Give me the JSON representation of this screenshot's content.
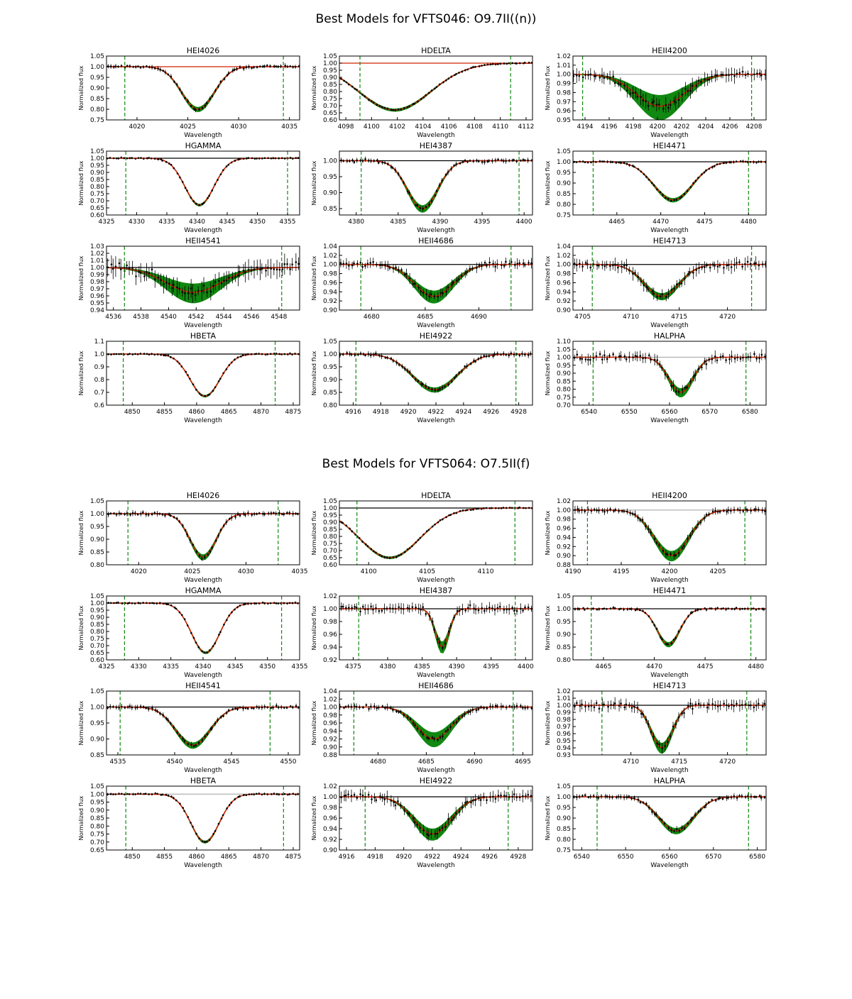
{
  "figures": [
    {
      "title": "Best Models for VFTS046: O9.7II((n))",
      "panels": [
        {
          "name": "HEI4026",
          "xmin": 4017,
          "xmax": 4036,
          "ymin": 0.75,
          "ymax": 1.05,
          "xticks": [
            4020,
            4025,
            4030,
            4035
          ],
          "yticks": [
            "0.75",
            "0.80",
            "0.85",
            "0.90",
            "0.95",
            "1.00",
            "1.05"
          ],
          "refline": "red",
          "center": 4026.0,
          "depth": 0.2,
          "width": 1.6,
          "spread": 0.012,
          "bands": [
            4018.8,
            4034.4
          ],
          "noise": 0.008,
          "xlabel": "Wavelength",
          "ylabel": "Normalized flux"
        },
        {
          "name": "HDELTA",
          "xmin": 4097.5,
          "xmax": 4112.5,
          "ymin": 0.6,
          "ymax": 1.05,
          "xticks": [
            4098,
            4100,
            4102,
            4104,
            4106,
            4108,
            4110,
            4112
          ],
          "yticks": [
            "0.60",
            "0.65",
            "0.70",
            "0.75",
            "0.80",
            "0.85",
            "0.90",
            "0.95",
            "1.00",
            "1.05"
          ],
          "refline": "red",
          "center": 4101.8,
          "depth": 0.33,
          "width": 2.8,
          "spread": 0.01,
          "bands": [
            4099.1,
            4110.8
          ],
          "noise": 0.006,
          "xlabel": "Wavelength",
          "ylabel": "Normalized flux"
        },
        {
          "name": "HEII4200",
          "xmin": 4193,
          "xmax": 4209,
          "ymin": 0.95,
          "ymax": 1.02,
          "xticks": [
            4194,
            4196,
            4198,
            4200,
            4202,
            4204,
            4206,
            4208
          ],
          "yticks": [
            "0.95",
            "0.96",
            "0.97",
            "0.98",
            "0.99",
            "1.00",
            "1.01",
            "1.02"
          ],
          "refline": "gray",
          "center": 4200.2,
          "depth": 0.035,
          "width": 2.0,
          "spread": 0.015,
          "bands": [
            4193.8,
            4207.8
          ],
          "noise": 0.006,
          "xlabel": "Wavelength",
          "ylabel": "Normalized flux"
        },
        {
          "name": "HGAMMA",
          "xmin": 4325,
          "xmax": 4357,
          "ymin": 0.6,
          "ymax": 1.05,
          "xticks": [
            4325,
            4330,
            4335,
            4340,
            4345,
            4350,
            4355
          ],
          "yticks": [
            "0.60",
            "0.65",
            "0.70",
            "0.75",
            "0.80",
            "0.85",
            "0.90",
            "0.95",
            "1.00",
            "1.05"
          ],
          "refline": "black",
          "center": 4340.4,
          "depth": 0.33,
          "width": 2.4,
          "spread": 0.008,
          "bands": [
            4328.2,
            4355.0
          ],
          "noise": 0.006,
          "xlabel": "Wavelength",
          "ylabel": "Normalized flux"
        },
        {
          "name": "HEI4387",
          "xmin": 4378,
          "xmax": 4401,
          "ymin": 0.83,
          "ymax": 1.03,
          "xticks": [
            4380,
            4385,
            4390,
            4395,
            4400
          ],
          "yticks": [
            "0.85",
            "0.90",
            "0.95",
            "1.00"
          ],
          "refline": "black",
          "center": 4387.9,
          "depth": 0.15,
          "width": 1.8,
          "spread": 0.012,
          "bands": [
            4380.6,
            4399.4
          ],
          "noise": 0.006,
          "xlabel": "Wavelength",
          "ylabel": "Normalized flux"
        },
        {
          "name": "HEI4471",
          "xmin": 4460,
          "xmax": 4482,
          "ymin": 0.75,
          "ymax": 1.05,
          "xticks": [
            4465,
            4470,
            4475,
            4480
          ],
          "yticks": [
            "0.75",
            "0.80",
            "0.85",
            "0.90",
            "0.95",
            "1.00",
            "1.05"
          ],
          "refline": "black",
          "center": 4471.4,
          "depth": 0.18,
          "width": 2.2,
          "spread": 0.01,
          "bands": [
            4462.3,
            4480.0
          ],
          "noise": 0.005,
          "xlabel": "Wavelength",
          "ylabel": "Normalized flux"
        },
        {
          "name": "HEII4541",
          "xmin": 4535.5,
          "xmax": 4549.5,
          "ymin": 0.94,
          "ymax": 1.03,
          "xticks": [
            4536,
            4538,
            4540,
            4542,
            4544,
            4546,
            4548
          ],
          "yticks": [
            "0.94",
            "0.95",
            "0.96",
            "0.97",
            "0.98",
            "0.99",
            "1.00",
            "1.01",
            "1.02",
            "1.03"
          ],
          "refline": "black",
          "center": 4541.8,
          "depth": 0.035,
          "width": 2.0,
          "spread": 0.015,
          "bands": [
            4536.8,
            4548.2
          ],
          "noise": 0.01,
          "xlabel": "Wavelength",
          "ylabel": "Normalized flux"
        },
        {
          "name": "HEII4686",
          "xmin": 4677,
          "xmax": 4695,
          "ymin": 0.9,
          "ymax": 1.04,
          "xticks": [
            4680,
            4685,
            4690
          ],
          "yticks": [
            "0.90",
            "0.92",
            "0.94",
            "0.96",
            "0.98",
            "1.00",
            "1.02",
            "1.04"
          ],
          "refline": "black",
          "center": 4685.8,
          "depth": 0.07,
          "width": 1.8,
          "spread": 0.015,
          "bands": [
            4679.0,
            4693.0
          ],
          "noise": 0.008,
          "xlabel": "Wavelength",
          "ylabel": "Normalized flux"
        },
        {
          "name": "HEI4713",
          "xmin": 4704,
          "xmax": 4724,
          "ymin": 0.9,
          "ymax": 1.04,
          "xticks": [
            4705,
            4710,
            4715,
            4720
          ],
          "yticks": [
            "0.90",
            "0.92",
            "0.94",
            "0.96",
            "0.98",
            "1.00",
            "1.02",
            "1.04"
          ],
          "refline": "black",
          "center": 4713.2,
          "depth": 0.07,
          "width": 1.8,
          "spread": 0.008,
          "bands": [
            4706.0,
            4722.5
          ],
          "noise": 0.01,
          "xlabel": "Wavelength",
          "ylabel": "Normalized flux"
        },
        {
          "name": "HBETA",
          "xmin": 4846,
          "xmax": 4876,
          "ymin": 0.6,
          "ymax": 1.1,
          "xticks": [
            4850,
            4855,
            4860,
            4865,
            4870,
            4875
          ],
          "yticks": [
            "0.6",
            "0.7",
            "0.8",
            "0.9",
            "1.0",
            "1.1"
          ],
          "refline": "black",
          "center": 4861.3,
          "depth": 0.33,
          "width": 2.3,
          "spread": 0.008,
          "bands": [
            4848.6,
            4872.2
          ],
          "noise": 0.006,
          "xlabel": "Wavelength",
          "ylabel": "Normalized flux"
        },
        {
          "name": "HEI4922",
          "xmin": 4915,
          "xmax": 4929,
          "ymin": 0.8,
          "ymax": 1.05,
          "xticks": [
            4916,
            4918,
            4920,
            4922,
            4924,
            4926,
            4928
          ],
          "yticks": [
            "0.80",
            "0.85",
            "0.90",
            "0.95",
            "1.00",
            "1.05"
          ],
          "refline": "black",
          "center": 4921.9,
          "depth": 0.14,
          "width": 1.6,
          "spread": 0.01,
          "bands": [
            4916.2,
            4927.8
          ],
          "noise": 0.008,
          "xlabel": "Wavelength",
          "ylabel": "Normalized flux"
        },
        {
          "name": "HALPHA",
          "xmin": 6536,
          "xmax": 6584,
          "ymin": 0.7,
          "ymax": 1.1,
          "xticks": [
            6540,
            6550,
            6560,
            6570,
            6580
          ],
          "yticks": [
            "0.70",
            "0.75",
            "0.80",
            "0.85",
            "0.90",
            "0.95",
            "1.00",
            "1.05",
            "1.10"
          ],
          "refline": "gray",
          "center": 6562.8,
          "depth": 0.22,
          "width": 3.0,
          "spread": 0.03,
          "bands": [
            6541.0,
            6579.0
          ],
          "noise": 0.025,
          "xlabel": "Wavelength",
          "ylabel": "Normalized flux"
        }
      ]
    },
    {
      "title": "Best Models for VFTS064: O7.5II(f)",
      "panels": [
        {
          "name": "HEI4026",
          "xmin": 4017,
          "xmax": 4035,
          "ymin": 0.8,
          "ymax": 1.05,
          "xticks": [
            4020,
            4025,
            4030,
            4035
          ],
          "yticks": [
            "0.80",
            "0.85",
            "0.90",
            "0.95",
            "1.00",
            "1.05"
          ],
          "refline": "black",
          "center": 4026.0,
          "depth": 0.17,
          "width": 1.2,
          "spread": 0.012,
          "bands": [
            4019.0,
            4033.0
          ],
          "noise": 0.008,
          "xlabel": "Wavelength",
          "ylabel": "Normalized flux"
        },
        {
          "name": "HDELTA",
          "xmin": 4097.5,
          "xmax": 4114,
          "ymin": 0.6,
          "ymax": 1.05,
          "xticks": [
            4100,
            4105,
            4110
          ],
          "yticks": [
            "0.60",
            "0.65",
            "0.70",
            "0.75",
            "0.80",
            "0.85",
            "0.90",
            "0.95",
            "1.00",
            "1.05"
          ],
          "refline": "black",
          "center": 4101.8,
          "depth": 0.35,
          "width": 2.6,
          "spread": 0.008,
          "bands": [
            4099.0,
            4112.5
          ],
          "noise": 0.006,
          "xlabel": "Wavelength",
          "ylabel": "Normalized flux"
        },
        {
          "name": "HEII4200",
          "xmin": 4190,
          "xmax": 4210,
          "ymin": 0.88,
          "ymax": 1.02,
          "xticks": [
            4190,
            4195,
            4200,
            4205
          ],
          "yticks": [
            "0.88",
            "0.90",
            "0.92",
            "0.94",
            "0.96",
            "0.98",
            "1.00",
            "1.02"
          ],
          "refline": "gray",
          "center": 4200.2,
          "depth": 0.1,
          "width": 1.8,
          "spread": 0.012,
          "bands": [
            4191.5,
            4207.8
          ],
          "noise": 0.006,
          "xlabel": "Wavelength",
          "ylabel": "Normalized flux"
        },
        {
          "name": "HGAMMA",
          "xmin": 4325,
          "xmax": 4355,
          "ymin": 0.6,
          "ymax": 1.05,
          "xticks": [
            4325,
            4330,
            4335,
            4340,
            4345,
            4350,
            4355
          ],
          "yticks": [
            "0.60",
            "0.65",
            "0.70",
            "0.75",
            "0.80",
            "0.85",
            "0.90",
            "0.95",
            "1.00",
            "1.05"
          ],
          "refline": "black",
          "center": 4340.4,
          "depth": 0.35,
          "width": 2.2,
          "spread": 0.008,
          "bands": [
            4327.8,
            4352.2
          ],
          "noise": 0.006,
          "xlabel": "Wavelength",
          "ylabel": "Normalized flux"
        },
        {
          "name": "HEI4387",
          "xmin": 4373,
          "xmax": 4401,
          "ymin": 0.92,
          "ymax": 1.02,
          "xticks": [
            4375,
            4380,
            4385,
            4390,
            4395,
            4400
          ],
          "yticks": [
            "0.92",
            "0.94",
            "0.96",
            "0.98",
            "1.00",
            "1.02"
          ],
          "refline": "black",
          "center": 4387.9,
          "depth": 0.06,
          "width": 1.0,
          "spread": 0.01,
          "bands": [
            4375.8,
            4398.5
          ],
          "noise": 0.006,
          "xlabel": "Wavelength",
          "ylabel": "Normalized flux"
        },
        {
          "name": "HEI4471",
          "xmin": 4462,
          "xmax": 4481,
          "ymin": 0.8,
          "ymax": 1.05,
          "xticks": [
            4465,
            4470,
            4475,
            4480
          ],
          "yticks": [
            "0.80",
            "0.85",
            "0.90",
            "0.95",
            "1.00",
            "1.05"
          ],
          "refline": "black",
          "center": 4471.4,
          "depth": 0.14,
          "width": 1.1,
          "spread": 0.01,
          "bands": [
            4463.8,
            4479.5
          ],
          "noise": 0.005,
          "xlabel": "Wavelength",
          "ylabel": "Normalized flux"
        },
        {
          "name": "HEII4541",
          "xmin": 4534,
          "xmax": 4551,
          "ymin": 0.85,
          "ymax": 1.05,
          "xticks": [
            4535,
            4540,
            4545,
            4550
          ],
          "yticks": [
            "0.85",
            "0.90",
            "0.95",
            "1.00",
            "1.05"
          ],
          "refline": "black",
          "center": 4541.6,
          "depth": 0.12,
          "width": 1.5,
          "spread": 0.01,
          "bands": [
            4535.2,
            4548.4
          ],
          "noise": 0.006,
          "xlabel": "Wavelength",
          "ylabel": "Normalized flux"
        },
        {
          "name": "HEII4686",
          "xmin": 4676,
          "xmax": 4696,
          "ymin": 0.88,
          "ymax": 1.04,
          "xticks": [
            4680,
            4685,
            4690,
            4695
          ],
          "yticks": [
            "0.88",
            "0.90",
            "0.92",
            "0.94",
            "0.96",
            "0.98",
            "1.00",
            "1.02",
            "1.04"
          ],
          "refline": "black",
          "center": 4685.8,
          "depth": 0.08,
          "width": 1.8,
          "spread": 0.02,
          "bands": [
            4677.5,
            4694.0
          ],
          "noise": 0.006,
          "xlabel": "Wavelength",
          "ylabel": "Normalized flux"
        },
        {
          "name": "HEI4713",
          "xmin": 4704,
          "xmax": 4724,
          "ymin": 0.93,
          "ymax": 1.02,
          "xticks": [
            4710,
            4715,
            4720
          ],
          "yticks": [
            "0.93",
            "0.94",
            "0.95",
            "0.96",
            "0.97",
            "0.98",
            "0.99",
            "1.00",
            "1.01",
            "1.02"
          ],
          "refline": "black",
          "center": 4713.2,
          "depth": 0.06,
          "width": 1.1,
          "spread": 0.008,
          "bands": [
            4707.0,
            4722.0
          ],
          "noise": 0.006,
          "xlabel": "Wavelength",
          "ylabel": "Normalized flux"
        },
        {
          "name": "HBETA",
          "xmin": 4846,
          "xmax": 4876,
          "ymin": 0.65,
          "ymax": 1.05,
          "xticks": [
            4850,
            4855,
            4860,
            4865,
            4870,
            4875
          ],
          "yticks": [
            "0.65",
            "0.70",
            "0.75",
            "0.80",
            "0.85",
            "0.90",
            "0.95",
            "1.00",
            "1.05"
          ],
          "refline": "gray",
          "center": 4861.3,
          "depth": 0.3,
          "width": 2.2,
          "spread": 0.008,
          "bands": [
            4849.0,
            4873.5
          ],
          "noise": 0.006,
          "xlabel": "Wavelength",
          "ylabel": "Normalized flux"
        },
        {
          "name": "HEI4922",
          "xmin": 4915.5,
          "xmax": 4929,
          "ymin": 0.9,
          "ymax": 1.02,
          "xticks": [
            4916,
            4918,
            4920,
            4922,
            4924,
            4926,
            4928
          ],
          "yticks": [
            "0.90",
            "0.92",
            "0.94",
            "0.96",
            "0.98",
            "1.00",
            "1.02"
          ],
          "refline": "black",
          "center": 4922.0,
          "depth": 0.07,
          "width": 1.3,
          "spread": 0.012,
          "bands": [
            4917.3,
            4927.3
          ],
          "noise": 0.008,
          "xlabel": "Wavelength",
          "ylabel": "Normalized flux"
        },
        {
          "name": "HALPHA",
          "xmin": 6538,
          "xmax": 6582,
          "ymin": 0.75,
          "ymax": 1.05,
          "xticks": [
            6540,
            6550,
            6560,
            6570,
            6580
          ],
          "yticks": [
            "0.75",
            "0.80",
            "0.85",
            "0.90",
            "0.95",
            "1.00",
            "1.05"
          ],
          "refline": "black",
          "center": 6561.5,
          "depth": 0.16,
          "width": 4.0,
          "spread": 0.015,
          "bands": [
            6543.5,
            6578.0
          ],
          "noise": 0.01,
          "xlabel": "Wavelength",
          "ylabel": "Normalized flux"
        }
      ]
    }
  ],
  "chart_data": {
    "type": "line",
    "description_series": [
      "observed spectrum (black points with error bars)",
      "model fits (green)",
      "best model (red)"
    ],
    "titles": [
      "Best Models for VFTS046: O9.7II((n))",
      "Best Models for VFTS064: O7.5II(f)"
    ],
    "xlabel": "Wavelength",
    "ylabel": "Normalized flux"
  },
  "colors": {
    "model_band": "#118811",
    "best_model": "#cc2200",
    "data": "#000000",
    "ref_black": "#000000",
    "ref_gray": "#b0b0b0",
    "ref_red": "#d02000",
    "marker_line": "#118811"
  }
}
